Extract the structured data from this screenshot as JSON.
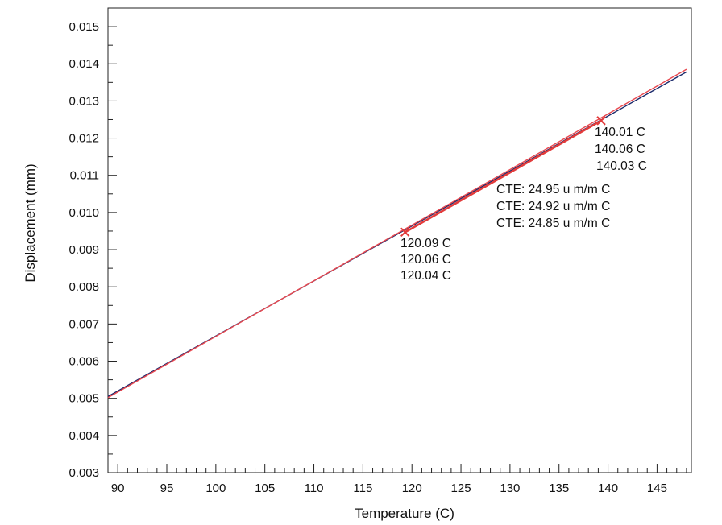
{
  "chart_data": {
    "type": "line",
    "xlabel": "Temperature (C)",
    "ylabel": "Displacement (mm)",
    "xlim": [
      89,
      148.5
    ],
    "ylim": [
      0.003,
      0.0155
    ],
    "xticks": [
      "90",
      "95",
      "100",
      "105",
      "110",
      "115",
      "120",
      "125",
      "130",
      "135",
      "140",
      "145"
    ],
    "yticks": [
      "0.003",
      "0.004",
      "0.005",
      "0.006",
      "0.007",
      "0.008",
      "0.009",
      "0.010",
      "0.011",
      "0.012",
      "0.013",
      "0.014",
      "0.015"
    ],
    "grid": false,
    "series": [
      {
        "color": "#1b2a6b",
        "x": [
          89,
          148
        ],
        "y": [
          0.00505,
          0.01378
        ]
      },
      {
        "color": "#e8484f",
        "x": [
          89,
          148
        ],
        "y": [
          0.00502,
          0.01385
        ]
      }
    ],
    "markers": [
      {
        "x": 119.3,
        "y": 0.00947,
        "color": "#e23b3b"
      },
      {
        "x": 139.3,
        "y": 0.01247,
        "color": "#e23b3b"
      }
    ],
    "tangent": {
      "color": "#e23b3b",
      "x": [
        119.3,
        139.3
      ],
      "y": [
        0.00947,
        0.01247
      ]
    },
    "annotations": {
      "low_temps": [
        "120.09 C",
        "120.06 C",
        "120.04 C"
      ],
      "high_temps": [
        "140.01 C",
        "140.06 C",
        "140.03 C"
      ],
      "cte": [
        "CTE: 24.95 u m/m C",
        "CTE: 24.92 u m/m C",
        "CTE: 24.85 u m/m C"
      ]
    }
  }
}
